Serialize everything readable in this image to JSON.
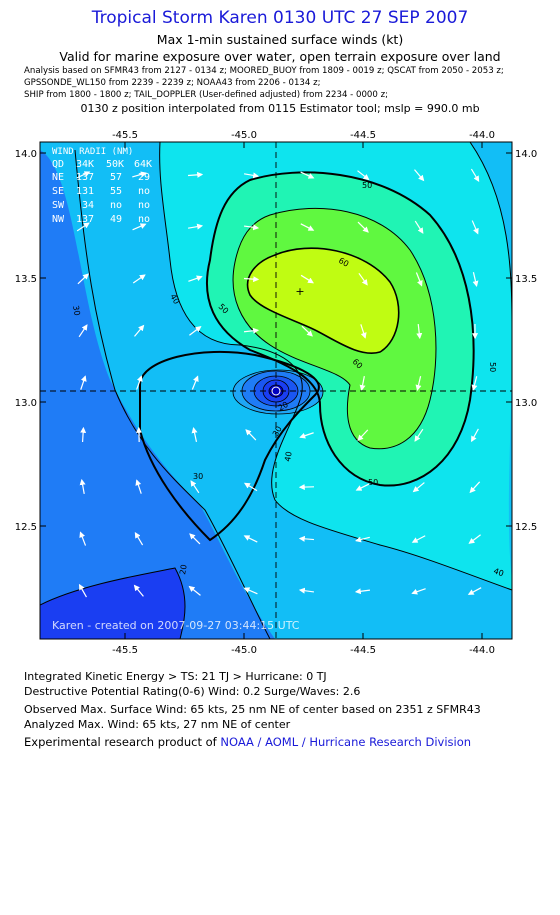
{
  "header": {
    "title": "Tropical Storm Karen 0130 UTC 27 SEP 2007",
    "subtitle1": "Max 1-min sustained surface winds (kt)",
    "subtitle2": "Valid for marine exposure over water, open terrain exposure over land",
    "analysis_lines": [
      "Analysis based on  SFMR43 from 2127 - 0134 z;  MOORED_BUOY from 1809 - 0019 z;  QSCAT from 2050 - 2053 z;",
      "GPSSONDE_WL150 from 2239 - 2239 z;  NOAA43 from 2206 - 0134 z;",
      "SHIP from 1800 - 1800 z;  TAIL_DOPPLER (User-defined adjusted) from 2234 - 0000 z;"
    ],
    "position_line": "0130 z position interpolated from 0115 Estimator tool; mslp = 990.0 mb"
  },
  "map": {
    "lon_ticks": [
      "-45.5",
      "-45.0",
      "-44.5",
      "-44.0"
    ],
    "lat_ticks": [
      "14.0",
      "13.5",
      "13.0",
      "12.5"
    ],
    "contour_labels": [
      "20",
      "30",
      "40",
      "50",
      "60"
    ],
    "center_marker": "+",
    "wind_radii": {
      "title": "WIND RADII (NM)",
      "header": [
        "QD",
        "34K",
        "50K",
        "64K"
      ],
      "rows": [
        [
          "NE",
          "137",
          "57",
          "29"
        ],
        [
          "SE",
          "131",
          "55",
          "no"
        ],
        [
          "SW",
          "34",
          "no",
          "no"
        ],
        [
          "NW",
          "137",
          "49",
          "no"
        ]
      ]
    },
    "created_text": "Karen - created on 2007-09-27 03:44:15 UTC",
    "colors": {
      "band_10": "#1a3ef2",
      "band_20": "#1f7cf6",
      "band_30": "#12bef6",
      "band_40": "#0ee4ee",
      "band_50": "#20f4b4",
      "band_60": "#60f840",
      "band_65": "#c0fc12",
      "center": "#0000c0"
    }
  },
  "footer": {
    "ike": "Integrated Kinetic Energy > TS: 21 TJ   > Hurricane: 0 TJ",
    "dpr": "Destructive Potential Rating(0-6)  Wind: 0.2 Surge/Waves: 2.6",
    "observed": "Observed Max. Surface Wind: 65 kts, 25 nm NE of center based on 2351 z SFMR43",
    "analyzed": "Analyzed Max. Wind: 65 kts, 27 nm NE of center",
    "credit_prefix": "Experimental research product of",
    "credit_org": "NOAA / AOML / Hurricane Research Division"
  }
}
